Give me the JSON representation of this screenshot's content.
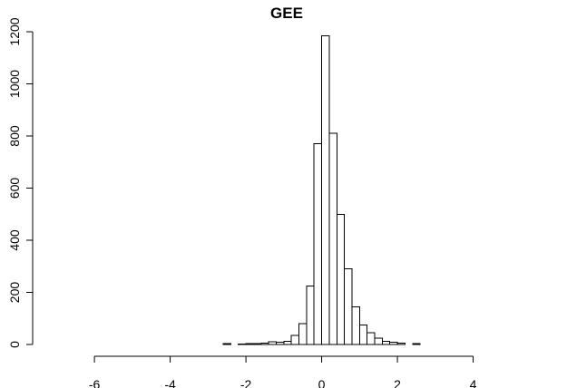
{
  "chart_data": {
    "type": "bar",
    "title": "GEE",
    "xlabel": "",
    "ylabel": "",
    "xlim": [
      -7.2,
      5.4
    ],
    "ylim": [
      0,
      1200
    ],
    "xticks": [
      -6,
      -4,
      -2,
      0,
      2,
      4
    ],
    "xtick_labels": [
      "-6",
      "-4",
      "-2",
      "0",
      "2",
      "4"
    ],
    "yticks": [
      0,
      200,
      400,
      600,
      800,
      1000,
      1200
    ],
    "ytick_labels": [
      "0",
      "200",
      "400",
      "600",
      "800",
      "1000",
      "1200"
    ],
    "bin_width": 0.2,
    "bins": [
      {
        "x0": -7.0,
        "count": 0
      },
      {
        "x0": -6.8,
        "count": 0
      },
      {
        "x0": -6.6,
        "count": 0
      },
      {
        "x0": -6.4,
        "count": 0
      },
      {
        "x0": -6.2,
        "count": 0
      },
      {
        "x0": -6.0,
        "count": 0
      },
      {
        "x0": -5.8,
        "count": 0
      },
      {
        "x0": -5.6,
        "count": 0
      },
      {
        "x0": -5.4,
        "count": 0
      },
      {
        "x0": -5.2,
        "count": 0
      },
      {
        "x0": -5.0,
        "count": 0
      },
      {
        "x0": -4.8,
        "count": 0
      },
      {
        "x0": -4.6,
        "count": 0
      },
      {
        "x0": -4.4,
        "count": 0
      },
      {
        "x0": -4.2,
        "count": 0
      },
      {
        "x0": -4.0,
        "count": 0
      },
      {
        "x0": -3.8,
        "count": 0
      },
      {
        "x0": -3.6,
        "count": 0
      },
      {
        "x0": -3.4,
        "count": 0
      },
      {
        "x0": -3.2,
        "count": 0
      },
      {
        "x0": -3.0,
        "count": 0
      },
      {
        "x0": -2.8,
        "count": 0
      },
      {
        "x0": -2.6,
        "count": 3
      },
      {
        "x0": -2.4,
        "count": 0
      },
      {
        "x0": -2.2,
        "count": 2
      },
      {
        "x0": -2.0,
        "count": 3
      },
      {
        "x0": -1.8,
        "count": 3
      },
      {
        "x0": -1.6,
        "count": 5
      },
      {
        "x0": -1.4,
        "count": 10
      },
      {
        "x0": -1.2,
        "count": 8
      },
      {
        "x0": -1.0,
        "count": 12
      },
      {
        "x0": -0.8,
        "count": 35
      },
      {
        "x0": -0.6,
        "count": 80
      },
      {
        "x0": -0.4,
        "count": 225
      },
      {
        "x0": -0.2,
        "count": 770
      },
      {
        "x0": 0.0,
        "count": 1185
      },
      {
        "x0": 0.2,
        "count": 810
      },
      {
        "x0": 0.4,
        "count": 500
      },
      {
        "x0": 0.6,
        "count": 290
      },
      {
        "x0": 0.8,
        "count": 145
      },
      {
        "x0": 1.0,
        "count": 75
      },
      {
        "x0": 1.2,
        "count": 45
      },
      {
        "x0": 1.4,
        "count": 25
      },
      {
        "x0": 1.6,
        "count": 12
      },
      {
        "x0": 1.8,
        "count": 8
      },
      {
        "x0": 2.0,
        "count": 5
      },
      {
        "x0": 2.2,
        "count": 0
      },
      {
        "x0": 2.4,
        "count": 3
      },
      {
        "x0": 2.6,
        "count": 0
      },
      {
        "x0": 2.8,
        "count": 0
      },
      {
        "x0": 3.0,
        "count": 0
      },
      {
        "x0": 3.2,
        "count": 0
      },
      {
        "x0": 3.4,
        "count": 0
      },
      {
        "x0": 3.6,
        "count": 0
      },
      {
        "x0": 3.8,
        "count": 0
      },
      {
        "x0": 4.0,
        "count": 0
      },
      {
        "x0": 4.2,
        "count": 0
      },
      {
        "x0": 4.4,
        "count": 0
      },
      {
        "x0": 4.6,
        "count": 0
      },
      {
        "x0": 4.8,
        "count": 0
      },
      {
        "x0": 5.0,
        "count": 0
      },
      {
        "x0": 5.2,
        "count": 0
      }
    ],
    "grid": false,
    "legend": "none"
  }
}
